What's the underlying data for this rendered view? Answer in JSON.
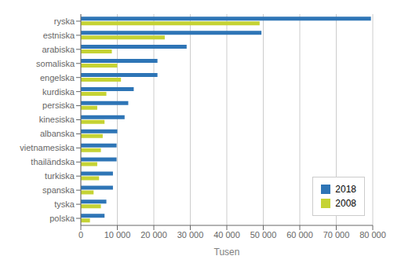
{
  "chart_data": {
    "type": "bar",
    "orientation": "horizontal",
    "categories": [
      "ryska",
      "estniska",
      "arabiska",
      "somaliska",
      "engelska",
      "kurdiska",
      "persiska",
      "kinesiska",
      "albanska",
      "vietnamesiska",
      "thailändska",
      "turkiska",
      "spanska",
      "tyska",
      "polska"
    ],
    "series": [
      {
        "name": "2018",
        "color": "#2E75B6",
        "values": [
          79500,
          49500,
          29000,
          21000,
          21000,
          14500,
          13000,
          12000,
          10000,
          9800,
          9800,
          8800,
          8800,
          7000,
          6500
        ]
      },
      {
        "name": "2008",
        "color": "#C5D334",
        "values": [
          49000,
          23000,
          8500,
          10000,
          11000,
          7000,
          4500,
          6500,
          6000,
          5500,
          4500,
          5000,
          3500,
          5500,
          2500
        ]
      }
    ],
    "xlabel": "Tusen",
    "xlim": [
      0,
      80000
    ],
    "xticks": [
      0,
      {
        "value": 10000,
        "label": "10 000"
      },
      {
        "value": 20000,
        "label": "20 000"
      },
      {
        "value": 30000,
        "label": "30 000"
      },
      {
        "value": 40000,
        "label": "40 000"
      },
      {
        "value": 50000,
        "label": "50 000"
      },
      {
        "value": 60000,
        "label": "60 000"
      },
      {
        "value": 70000,
        "label": "70 000"
      },
      {
        "value": 80000,
        "label": "80 000"
      }
    ],
    "grid": true,
    "legend": "lower right"
  }
}
